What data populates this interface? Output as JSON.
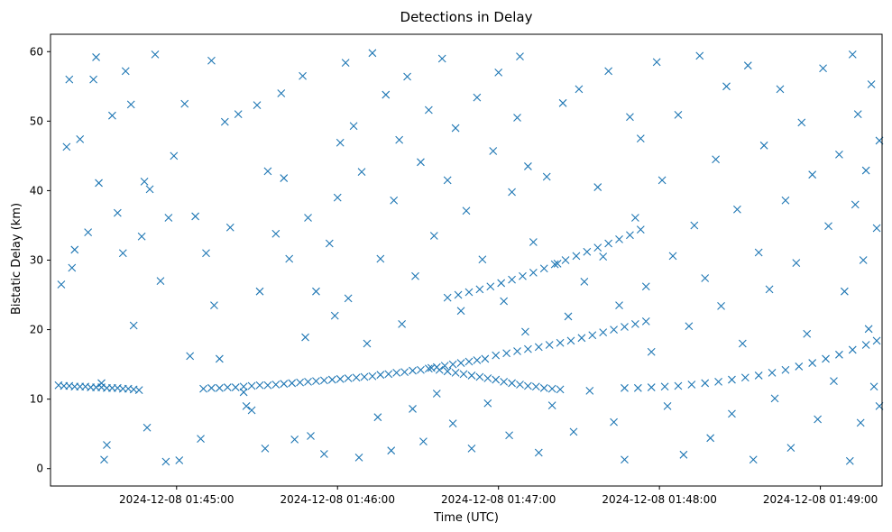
{
  "chart_data": {
    "type": "scatter",
    "title": "Detections in Delay",
    "xlabel": "Time (UTC)",
    "ylabel": "Bistatic Delay (km)",
    "marker": "x",
    "marker_color": "#1f77b4",
    "xlim": [
      "2024-12-08 01:44:13",
      "2024-12-08 01:49:23"
    ],
    "ylim": [
      -2.5,
      62.5
    ],
    "grid": false,
    "x_ticks": [
      {
        "value": "2024-12-08 01:45:00",
        "label": "2024-12-08 01:45:00"
      },
      {
        "value": "2024-12-08 01:46:00",
        "label": "2024-12-08 01:46:00"
      },
      {
        "value": "2024-12-08 01:47:00",
        "label": "2024-12-08 01:47:00"
      },
      {
        "value": "2024-12-08 01:48:00",
        "label": "2024-12-08 01:48:00"
      },
      {
        "value": "2024-12-08 01:49:00",
        "label": "2024-12-08 01:49:00"
      }
    ],
    "y_ticks": [
      {
        "value": 0,
        "label": "0"
      },
      {
        "value": 10,
        "label": "10"
      },
      {
        "value": 20,
        "label": "20"
      },
      {
        "value": 30,
        "label": "30"
      },
      {
        "value": 40,
        "label": "40"
      },
      {
        "value": 50,
        "label": "50"
      },
      {
        "value": 60,
        "label": "60"
      }
    ],
    "points": [
      [
        "2024-12-08 01:44:16",
        12.0
      ],
      [
        "2024-12-08 01:44:18",
        11.9
      ],
      [
        "2024-12-08 01:44:20",
        11.9
      ],
      [
        "2024-12-08 01:44:22",
        11.8
      ],
      [
        "2024-12-08 01:44:24",
        11.8
      ],
      [
        "2024-12-08 01:44:26",
        11.8
      ],
      [
        "2024-12-08 01:44:28",
        11.7
      ],
      [
        "2024-12-08 01:44:30",
        11.7
      ],
      [
        "2024-12-08 01:44:32",
        11.7
      ],
      [
        "2024-12-08 01:44:34",
        11.6
      ],
      [
        "2024-12-08 01:44:36",
        11.6
      ],
      [
        "2024-12-08 01:44:38",
        11.6
      ],
      [
        "2024-12-08 01:44:40",
        11.5
      ],
      [
        "2024-12-08 01:44:42",
        11.5
      ],
      [
        "2024-12-08 01:44:44",
        11.4
      ],
      [
        "2024-12-08 01:44:46",
        11.3
      ],
      [
        "2024-12-08 01:45:10",
        11.5
      ],
      [
        "2024-12-08 01:45:13",
        11.6
      ],
      [
        "2024-12-08 01:45:16",
        11.6
      ],
      [
        "2024-12-08 01:45:19",
        11.7
      ],
      [
        "2024-12-08 01:45:22",
        11.7
      ],
      [
        "2024-12-08 01:45:25",
        11.8
      ],
      [
        "2024-12-08 01:45:28",
        11.9
      ],
      [
        "2024-12-08 01:45:31",
        12.0
      ],
      [
        "2024-12-08 01:45:34",
        12.0
      ],
      [
        "2024-12-08 01:45:37",
        12.1
      ],
      [
        "2024-12-08 01:45:40",
        12.2
      ],
      [
        "2024-12-08 01:45:43",
        12.3
      ],
      [
        "2024-12-08 01:45:46",
        12.4
      ],
      [
        "2024-12-08 01:45:49",
        12.5
      ],
      [
        "2024-12-08 01:45:52",
        12.6
      ],
      [
        "2024-12-08 01:45:55",
        12.7
      ],
      [
        "2024-12-08 01:45:58",
        12.8
      ],
      [
        "2024-12-08 01:46:01",
        12.9
      ],
      [
        "2024-12-08 01:46:04",
        13.0
      ],
      [
        "2024-12-08 01:46:07",
        13.1
      ],
      [
        "2024-12-08 01:46:10",
        13.2
      ],
      [
        "2024-12-08 01:46:13",
        13.3
      ],
      [
        "2024-12-08 01:46:16",
        13.5
      ],
      [
        "2024-12-08 01:46:19",
        13.6
      ],
      [
        "2024-12-08 01:46:22",
        13.8
      ],
      [
        "2024-12-08 01:46:25",
        13.9
      ],
      [
        "2024-12-08 01:46:28",
        14.1
      ],
      [
        "2024-12-08 01:46:31",
        14.2
      ],
      [
        "2024-12-08 01:46:34",
        14.4
      ],
      [
        "2024-12-08 01:46:37",
        14.6
      ],
      [
        "2024-12-08 01:46:40",
        14.8
      ],
      [
        "2024-12-08 01:46:43",
        15.0
      ],
      [
        "2024-12-08 01:46:46",
        15.2
      ],
      [
        "2024-12-08 01:46:49",
        15.4
      ],
      [
        "2024-12-08 01:46:52",
        15.6
      ],
      [
        "2024-12-08 01:46:55",
        15.8
      ],
      [
        "2024-12-08 01:46:35",
        14.5
      ],
      [
        "2024-12-08 01:46:38",
        14.2
      ],
      [
        "2024-12-08 01:46:41",
        14.0
      ],
      [
        "2024-12-08 01:46:44",
        13.8
      ],
      [
        "2024-12-08 01:46:47",
        13.6
      ],
      [
        "2024-12-08 01:46:50",
        13.4
      ],
      [
        "2024-12-08 01:46:53",
        13.2
      ],
      [
        "2024-12-08 01:46:56",
        13.0
      ],
      [
        "2024-12-08 01:46:59",
        12.8
      ],
      [
        "2024-12-08 01:47:02",
        12.5
      ],
      [
        "2024-12-08 01:47:05",
        12.3
      ],
      [
        "2024-12-08 01:47:08",
        12.1
      ],
      [
        "2024-12-08 01:47:11",
        11.9
      ],
      [
        "2024-12-08 01:47:14",
        11.8
      ],
      [
        "2024-12-08 01:47:17",
        11.6
      ],
      [
        "2024-12-08 01:47:20",
        11.5
      ],
      [
        "2024-12-08 01:47:23",
        11.4
      ],
      [
        "2024-12-08 01:46:59",
        16.3
      ],
      [
        "2024-12-08 01:47:03",
        16.6
      ],
      [
        "2024-12-08 01:47:07",
        16.9
      ],
      [
        "2024-12-08 01:47:11",
        17.2
      ],
      [
        "2024-12-08 01:47:15",
        17.5
      ],
      [
        "2024-12-08 01:47:19",
        17.8
      ],
      [
        "2024-12-08 01:47:23",
        18.1
      ],
      [
        "2024-12-08 01:47:27",
        18.4
      ],
      [
        "2024-12-08 01:47:31",
        18.8
      ],
      [
        "2024-12-08 01:47:35",
        19.2
      ],
      [
        "2024-12-08 01:47:39",
        19.6
      ],
      [
        "2024-12-08 01:47:43",
        20.0
      ],
      [
        "2024-12-08 01:47:47",
        20.4
      ],
      [
        "2024-12-08 01:47:51",
        20.8
      ],
      [
        "2024-12-08 01:47:55",
        21.2
      ],
      [
        "2024-12-08 01:46:41",
        24.6
      ],
      [
        "2024-12-08 01:46:45",
        25.0
      ],
      [
        "2024-12-08 01:46:49",
        25.4
      ],
      [
        "2024-12-08 01:46:53",
        25.8
      ],
      [
        "2024-12-08 01:46:57",
        26.2
      ],
      [
        "2024-12-08 01:47:01",
        26.7
      ],
      [
        "2024-12-08 01:47:05",
        27.2
      ],
      [
        "2024-12-08 01:47:09",
        27.7
      ],
      [
        "2024-12-08 01:47:13",
        28.2
      ],
      [
        "2024-12-08 01:47:17",
        28.8
      ],
      [
        "2024-12-08 01:47:21",
        29.4
      ],
      [
        "2024-12-08 01:47:25",
        30.0
      ],
      [
        "2024-12-08 01:47:29",
        30.6
      ],
      [
        "2024-12-08 01:47:33",
        31.2
      ],
      [
        "2024-12-08 01:47:37",
        31.8
      ],
      [
        "2024-12-08 01:47:41",
        32.4
      ],
      [
        "2024-12-08 01:47:45",
        33.0
      ],
      [
        "2024-12-08 01:47:49",
        33.6
      ],
      [
        "2024-12-08 01:47:53",
        34.4
      ],
      [
        "2024-12-08 01:47:47",
        11.6
      ],
      [
        "2024-12-08 01:47:52",
        11.6
      ],
      [
        "2024-12-08 01:47:57",
        11.7
      ],
      [
        "2024-12-08 01:48:02",
        11.8
      ],
      [
        "2024-12-08 01:48:07",
        11.9
      ],
      [
        "2024-12-08 01:48:12",
        12.1
      ],
      [
        "2024-12-08 01:48:17",
        12.3
      ],
      [
        "2024-12-08 01:48:22",
        12.5
      ],
      [
        "2024-12-08 01:48:27",
        12.8
      ],
      [
        "2024-12-08 01:48:32",
        13.1
      ],
      [
        "2024-12-08 01:48:37",
        13.4
      ],
      [
        "2024-12-08 01:48:42",
        13.8
      ],
      [
        "2024-12-08 01:48:47",
        14.2
      ],
      [
        "2024-12-08 01:48:52",
        14.7
      ],
      [
        "2024-12-08 01:48:57",
        15.2
      ],
      [
        "2024-12-08 01:49:02",
        15.8
      ],
      [
        "2024-12-08 01:49:07",
        16.4
      ],
      [
        "2024-12-08 01:49:12",
        17.1
      ],
      [
        "2024-12-08 01:49:17",
        17.8
      ],
      [
        "2024-12-08 01:49:21",
        18.4
      ],
      [
        "2024-12-08 01:44:17",
        26.5
      ],
      [
        "2024-12-08 01:44:19",
        46.3
      ],
      [
        "2024-12-08 01:44:20",
        56.0
      ],
      [
        "2024-12-08 01:44:21",
        28.9
      ],
      [
        "2024-12-08 01:44:22",
        31.5
      ],
      [
        "2024-12-08 01:44:24",
        47.4
      ],
      [
        "2024-12-08 01:44:27",
        34.0
      ],
      [
        "2024-12-08 01:44:29",
        56.0
      ],
      [
        "2024-12-08 01:44:30",
        59.2
      ],
      [
        "2024-12-08 01:44:31",
        41.1
      ],
      [
        "2024-12-08 01:44:32",
        12.3
      ],
      [
        "2024-12-08 01:44:33",
        1.3
      ],
      [
        "2024-12-08 01:44:34",
        3.4
      ],
      [
        "2024-12-08 01:44:36",
        50.8
      ],
      [
        "2024-12-08 01:44:38",
        36.8
      ],
      [
        "2024-12-08 01:44:40",
        31.0
      ],
      [
        "2024-12-08 01:44:41",
        57.2
      ],
      [
        "2024-12-08 01:44:43",
        52.4
      ],
      [
        "2024-12-08 01:44:44",
        20.6
      ],
      [
        "2024-12-08 01:44:47",
        33.4
      ],
      [
        "2024-12-08 01:44:48",
        41.3
      ],
      [
        "2024-12-08 01:44:49",
        5.9
      ],
      [
        "2024-12-08 01:44:50",
        40.2
      ],
      [
        "2024-12-08 01:44:52",
        59.6
      ],
      [
        "2024-12-08 01:44:54",
        27.0
      ],
      [
        "2024-12-08 01:44:56",
        1.0
      ],
      [
        "2024-12-08 01:44:57",
        36.1
      ],
      [
        "2024-12-08 01:44:59",
        45.0
      ],
      [
        "2024-12-08 01:45:01",
        1.2
      ],
      [
        "2024-12-08 01:45:03",
        52.5
      ],
      [
        "2024-12-08 01:45:05",
        16.2
      ],
      [
        "2024-12-08 01:45:07",
        36.3
      ],
      [
        "2024-12-08 01:45:09",
        4.3
      ],
      [
        "2024-12-08 01:45:11",
        31.0
      ],
      [
        "2024-12-08 01:45:13",
        58.7
      ],
      [
        "2024-12-08 01:45:14",
        23.5
      ],
      [
        "2024-12-08 01:45:16",
        15.8
      ],
      [
        "2024-12-08 01:45:18",
        49.9
      ],
      [
        "2024-12-08 01:45:20",
        34.7
      ],
      [
        "2024-12-08 01:45:23",
        51.0
      ],
      [
        "2024-12-08 01:45:25",
        11.0
      ],
      [
        "2024-12-08 01:45:26",
        9.0
      ],
      [
        "2024-12-08 01:45:28",
        8.4
      ],
      [
        "2024-12-08 01:45:30",
        52.3
      ],
      [
        "2024-12-08 01:45:31",
        25.5
      ],
      [
        "2024-12-08 01:45:33",
        2.9
      ],
      [
        "2024-12-08 01:45:34",
        42.8
      ],
      [
        "2024-12-08 01:45:37",
        33.8
      ],
      [
        "2024-12-08 01:45:39",
        54.0
      ],
      [
        "2024-12-08 01:45:40",
        41.8
      ],
      [
        "2024-12-08 01:45:42",
        30.2
      ],
      [
        "2024-12-08 01:45:44",
        4.2
      ],
      [
        "2024-12-08 01:45:47",
        56.5
      ],
      [
        "2024-12-08 01:45:48",
        18.9
      ],
      [
        "2024-12-08 01:45:49",
        36.1
      ],
      [
        "2024-12-08 01:45:50",
        4.7
      ],
      [
        "2024-12-08 01:45:52",
        25.5
      ],
      [
        "2024-12-08 01:45:55",
        2.1
      ],
      [
        "2024-12-08 01:45:57",
        32.4
      ],
      [
        "2024-12-08 01:45:59",
        22.0
      ],
      [
        "2024-12-08 01:46:00",
        39.0
      ],
      [
        "2024-12-08 01:46:01",
        46.9
      ],
      [
        "2024-12-08 01:46:03",
        58.4
      ],
      [
        "2024-12-08 01:46:04",
        24.5
      ],
      [
        "2024-12-08 01:46:06",
        49.3
      ],
      [
        "2024-12-08 01:46:08",
        1.6
      ],
      [
        "2024-12-08 01:46:09",
        42.7
      ],
      [
        "2024-12-08 01:46:11",
        18.0
      ],
      [
        "2024-12-08 01:46:13",
        59.8
      ],
      [
        "2024-12-08 01:46:15",
        7.4
      ],
      [
        "2024-12-08 01:46:16",
        30.2
      ],
      [
        "2024-12-08 01:46:18",
        53.8
      ],
      [
        "2024-12-08 01:46:20",
        2.6
      ],
      [
        "2024-12-08 01:46:21",
        38.6
      ],
      [
        "2024-12-08 01:46:23",
        47.3
      ],
      [
        "2024-12-08 01:46:24",
        20.8
      ],
      [
        "2024-12-08 01:46:26",
        56.4
      ],
      [
        "2024-12-08 01:46:28",
        8.6
      ],
      [
        "2024-12-08 01:46:29",
        27.7
      ],
      [
        "2024-12-08 01:46:31",
        44.1
      ],
      [
        "2024-12-08 01:46:32",
        3.9
      ],
      [
        "2024-12-08 01:46:34",
        51.6
      ],
      [
        "2024-12-08 01:46:36",
        33.5
      ],
      [
        "2024-12-08 01:46:37",
        10.8
      ],
      [
        "2024-12-08 01:46:39",
        59.0
      ],
      [
        "2024-12-08 01:46:41",
        41.5
      ],
      [
        "2024-12-08 01:46:43",
        6.5
      ],
      [
        "2024-12-08 01:46:44",
        49.0
      ],
      [
        "2024-12-08 01:46:46",
        22.7
      ],
      [
        "2024-12-08 01:46:48",
        37.1
      ],
      [
        "2024-12-08 01:46:50",
        2.9
      ],
      [
        "2024-12-08 01:46:52",
        53.4
      ],
      [
        "2024-12-08 01:46:54",
        30.1
      ],
      [
        "2024-12-08 01:46:56",
        9.4
      ],
      [
        "2024-12-08 01:46:58",
        45.7
      ],
      [
        "2024-12-08 01:47:00",
        57.0
      ],
      [
        "2024-12-08 01:47:02",
        24.1
      ],
      [
        "2024-12-08 01:47:04",
        4.8
      ],
      [
        "2024-12-08 01:47:05",
        39.8
      ],
      [
        "2024-12-08 01:47:07",
        50.5
      ],
      [
        "2024-12-08 01:47:08",
        59.3
      ],
      [
        "2024-12-08 01:47:10",
        19.7
      ],
      [
        "2024-12-08 01:47:11",
        43.5
      ],
      [
        "2024-12-08 01:47:13",
        32.6
      ],
      [
        "2024-12-08 01:47:15",
        2.3
      ],
      [
        "2024-12-08 01:47:18",
        42.0
      ],
      [
        "2024-12-08 01:47:20",
        9.1
      ],
      [
        "2024-12-08 01:47:22",
        29.5
      ],
      [
        "2024-12-08 01:47:24",
        52.6
      ],
      [
        "2024-12-08 01:47:26",
        21.9
      ],
      [
        "2024-12-08 01:47:28",
        5.3
      ],
      [
        "2024-12-08 01:47:30",
        54.6
      ],
      [
        "2024-12-08 01:47:32",
        26.9
      ],
      [
        "2024-12-08 01:47:34",
        11.2
      ],
      [
        "2024-12-08 01:47:37",
        40.5
      ],
      [
        "2024-12-08 01:47:39",
        30.5
      ],
      [
        "2024-12-08 01:47:41",
        57.2
      ],
      [
        "2024-12-08 01:47:43",
        6.7
      ],
      [
        "2024-12-08 01:47:45",
        23.5
      ],
      [
        "2024-12-08 01:47:47",
        1.3
      ],
      [
        "2024-12-08 01:47:49",
        50.6
      ],
      [
        "2024-12-08 01:47:51",
        36.1
      ],
      [
        "2024-12-08 01:47:53",
        47.5
      ],
      [
        "2024-12-08 01:47:55",
        26.2
      ],
      [
        "2024-12-08 01:47:57",
        16.8
      ],
      [
        "2024-12-08 01:47:59",
        58.5
      ],
      [
        "2024-12-08 01:48:01",
        41.5
      ],
      [
        "2024-12-08 01:48:03",
        9.0
      ],
      [
        "2024-12-08 01:48:05",
        30.6
      ],
      [
        "2024-12-08 01:48:07",
        50.9
      ],
      [
        "2024-12-08 01:48:09",
        2.0
      ],
      [
        "2024-12-08 01:48:11",
        20.5
      ],
      [
        "2024-12-08 01:48:13",
        35.0
      ],
      [
        "2024-12-08 01:48:15",
        59.4
      ],
      [
        "2024-12-08 01:48:17",
        27.4
      ],
      [
        "2024-12-08 01:48:19",
        4.4
      ],
      [
        "2024-12-08 01:48:21",
        44.5
      ],
      [
        "2024-12-08 01:48:23",
        23.4
      ],
      [
        "2024-12-08 01:48:25",
        55.0
      ],
      [
        "2024-12-08 01:48:27",
        7.9
      ],
      [
        "2024-12-08 01:48:29",
        37.3
      ],
      [
        "2024-12-08 01:48:31",
        18.0
      ],
      [
        "2024-12-08 01:48:33",
        58.0
      ],
      [
        "2024-12-08 01:48:35",
        1.3
      ],
      [
        "2024-12-08 01:48:37",
        31.1
      ],
      [
        "2024-12-08 01:48:39",
        46.5
      ],
      [
        "2024-12-08 01:48:41",
        25.8
      ],
      [
        "2024-12-08 01:48:43",
        10.1
      ],
      [
        "2024-12-08 01:48:45",
        54.6
      ],
      [
        "2024-12-08 01:48:47",
        38.6
      ],
      [
        "2024-12-08 01:48:49",
        3.0
      ],
      [
        "2024-12-08 01:48:51",
        29.6
      ],
      [
        "2024-12-08 01:48:53",
        49.8
      ],
      [
        "2024-12-08 01:48:55",
        19.4
      ],
      [
        "2024-12-08 01:48:57",
        42.3
      ],
      [
        "2024-12-08 01:48:59",
        7.1
      ],
      [
        "2024-12-08 01:49:01",
        57.6
      ],
      [
        "2024-12-08 01:49:03",
        34.9
      ],
      [
        "2024-12-08 01:49:05",
        12.6
      ],
      [
        "2024-12-08 01:49:07",
        45.2
      ],
      [
        "2024-12-08 01:49:09",
        25.5
      ],
      [
        "2024-12-08 01:49:11",
        1.1
      ],
      [
        "2024-12-08 01:49:12",
        59.6
      ],
      [
        "2024-12-08 01:49:13",
        38.0
      ],
      [
        "2024-12-08 01:49:14",
        51.0
      ],
      [
        "2024-12-08 01:49:15",
        6.6
      ],
      [
        "2024-12-08 01:49:16",
        30.0
      ],
      [
        "2024-12-08 01:49:17",
        42.9
      ],
      [
        "2024-12-08 01:49:18",
        20.1
      ],
      [
        "2024-12-08 01:49:19",
        55.3
      ],
      [
        "2024-12-08 01:49:20",
        11.8
      ],
      [
        "2024-12-08 01:49:21",
        34.6
      ],
      [
        "2024-12-08 01:49:22",
        47.2
      ],
      [
        "2024-12-08 01:49:22",
        9.0
      ]
    ]
  }
}
